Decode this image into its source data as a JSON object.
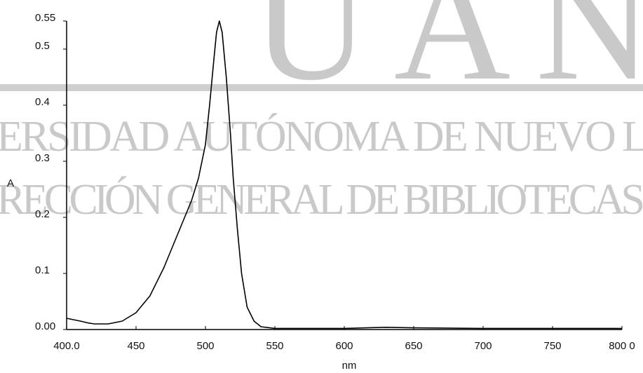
{
  "chart_data": {
    "type": "line",
    "xlabel": "nm",
    "ylabel": "A",
    "watermark": [
      "UAN",
      "ERSIDAD AUTÓNOMA DE NUEVO L",
      "RECCIÓN GENERAL DE BIBLIOTECAS"
    ],
    "x": [
      400,
      410,
      415,
      420,
      430,
      440,
      450,
      460,
      470,
      475,
      480,
      490,
      495,
      500,
      503,
      506,
      508,
      510,
      512,
      515,
      518,
      520,
      523,
      526,
      530,
      535,
      540,
      550,
      600,
      630,
      650,
      700,
      800
    ],
    "values": [
      0.02,
      0.015,
      0.012,
      0.01,
      0.01,
      0.015,
      0.03,
      0.06,
      0.11,
      0.14,
      0.17,
      0.23,
      0.27,
      0.33,
      0.4,
      0.48,
      0.53,
      0.55,
      0.53,
      0.45,
      0.35,
      0.27,
      0.18,
      0.1,
      0.04,
      0.015,
      0.005,
      0.002,
      0.002,
      0.004,
      0.003,
      0.002,
      0.002
    ],
    "color": "#000000",
    "xlim": [
      400,
      800
    ],
    "xticks": [
      {
        "value": 400,
        "label": "400.0"
      },
      450,
      500,
      550,
      600,
      650,
      700,
      750,
      {
        "value": 800,
        "label": "800 0"
      }
    ],
    "ylim": [
      0,
      0.55
    ],
    "yticks": [
      {
        "value": 0,
        "label": "0.00"
      },
      0.1,
      0.2,
      0.3,
      0.4,
      0.5,
      0.55
    ]
  }
}
